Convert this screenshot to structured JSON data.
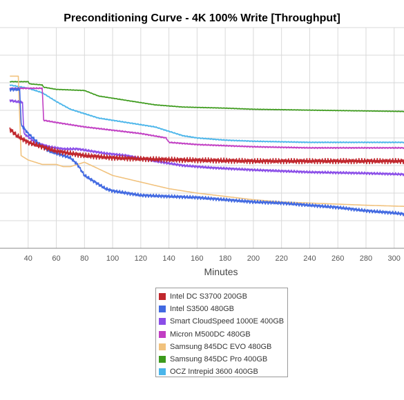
{
  "chart_data": {
    "type": "line",
    "title": "Preconditioning Curve - 4K 100% Write [Throughput]",
    "xlabel": "Minutes",
    "ylabel": "",
    "x_ticks": [
      40,
      60,
      80,
      100,
      120,
      140,
      160,
      180,
      200,
      220,
      240,
      260,
      280,
      300
    ],
    "xlim": [
      27,
      307
    ],
    "ylim": [
      0,
      100
    ],
    "grid": true,
    "legend_position": "bottom",
    "series": [
      {
        "name": "Intel DC S3700 200GB",
        "color": "#c0272d",
        "noise": 1.2,
        "points": [
          [
            27,
            54
          ],
          [
            32,
            51
          ],
          [
            40,
            48
          ],
          [
            50,
            46
          ],
          [
            60,
            44
          ],
          [
            70,
            43
          ],
          [
            80,
            42
          ],
          [
            90,
            41.5
          ],
          [
            100,
            41
          ],
          [
            120,
            40.5
          ],
          [
            150,
            40
          ],
          [
            200,
            39.5
          ],
          [
            250,
            39.5
          ],
          [
            307,
            39.5
          ]
        ]
      },
      {
        "name": "Intel S3500 480GB",
        "color": "#4169e1",
        "noise": 0.8,
        "points": [
          [
            27,
            72
          ],
          [
            34,
            72
          ],
          [
            35,
            56
          ],
          [
            40,
            52
          ],
          [
            45,
            49
          ],
          [
            50,
            46
          ],
          [
            55,
            44
          ],
          [
            60,
            43
          ],
          [
            65,
            42
          ],
          [
            70,
            41
          ],
          [
            75,
            38
          ],
          [
            80,
            33
          ],
          [
            85,
            31
          ],
          [
            90,
            29
          ],
          [
            95,
            27
          ],
          [
            100,
            26
          ],
          [
            110,
            25
          ],
          [
            120,
            24
          ],
          [
            140,
            23.5
          ],
          [
            160,
            23
          ],
          [
            180,
            22
          ],
          [
            200,
            21
          ],
          [
            220,
            20.5
          ],
          [
            240,
            19.5
          ],
          [
            260,
            18.5
          ],
          [
            280,
            17
          ],
          [
            300,
            16
          ],
          [
            307,
            15.5
          ]
        ]
      },
      {
        "name": "Smart CloudSpeed 1000E 400GB",
        "color": "#8a4de8",
        "noise": 0.6,
        "points": [
          [
            27,
            67
          ],
          [
            36,
            66
          ],
          [
            37,
            52
          ],
          [
            45,
            48
          ],
          [
            55,
            46
          ],
          [
            65,
            45
          ],
          [
            75,
            45
          ],
          [
            85,
            44
          ],
          [
            95,
            43
          ],
          [
            110,
            42
          ],
          [
            130,
            39.5
          ],
          [
            150,
            37.5
          ],
          [
            170,
            36.5
          ],
          [
            200,
            35.5
          ],
          [
            240,
            34.5
          ],
          [
            280,
            34
          ],
          [
            307,
            33.5
          ]
        ]
      },
      {
        "name": "Micron M500DC 480GB",
        "color": "#c13ec3",
        "noise": 0.3,
        "points": [
          [
            27,
            72.5
          ],
          [
            40,
            72.5
          ],
          [
            50,
            72.5
          ],
          [
            51,
            58
          ],
          [
            60,
            57
          ],
          [
            80,
            55
          ],
          [
            100,
            53.5
          ],
          [
            120,
            52
          ],
          [
            138,
            50
          ],
          [
            140,
            48
          ],
          [
            160,
            47
          ],
          [
            200,
            46
          ],
          [
            240,
            45.5
          ],
          [
            280,
            45.5
          ],
          [
            307,
            45.5
          ]
        ]
      },
      {
        "name": "Samsung 845DC EVO 480GB",
        "color": "#f1c27d",
        "noise": 0.0,
        "points": [
          [
            27,
            78
          ],
          [
            33,
            78
          ],
          [
            34,
            60
          ],
          [
            35,
            42
          ],
          [
            40,
            40
          ],
          [
            45,
            39
          ],
          [
            50,
            38
          ],
          [
            55,
            38
          ],
          [
            60,
            38
          ],
          [
            65,
            37
          ],
          [
            70,
            37
          ],
          [
            75,
            38
          ],
          [
            80,
            39
          ],
          [
            90,
            36
          ],
          [
            100,
            33
          ],
          [
            120,
            30
          ],
          [
            140,
            27
          ],
          [
            160,
            25
          ],
          [
            180,
            23.5
          ],
          [
            200,
            22
          ],
          [
            220,
            21
          ],
          [
            240,
            20.5
          ],
          [
            260,
            20
          ],
          [
            280,
            19.5
          ],
          [
            307,
            19
          ]
        ]
      },
      {
        "name": "Samsung 845DC Pro 400GB",
        "color": "#3c9a1b",
        "noise": 0.15,
        "points": [
          [
            27,
            75.5
          ],
          [
            40,
            75.5
          ],
          [
            41,
            74.5
          ],
          [
            50,
            74
          ],
          [
            51,
            73
          ],
          [
            60,
            72
          ],
          [
            80,
            71.5
          ],
          [
            90,
            69
          ],
          [
            110,
            67
          ],
          [
            130,
            65
          ],
          [
            150,
            64
          ],
          [
            180,
            63.5
          ],
          [
            200,
            63
          ],
          [
            250,
            62.5
          ],
          [
            307,
            62
          ]
        ]
      },
      {
        "name": "OCZ Intrepid 3600 400GB",
        "color": "#4ab5ea",
        "noise": 0.25,
        "points": [
          [
            27,
            74
          ],
          [
            40,
            72.5
          ],
          [
            50,
            70.5
          ],
          [
            60,
            66.5
          ],
          [
            70,
            63
          ],
          [
            80,
            61
          ],
          [
            90,
            59
          ],
          [
            100,
            58
          ],
          [
            110,
            57
          ],
          [
            120,
            56
          ],
          [
            130,
            55
          ],
          [
            140,
            53
          ],
          [
            150,
            51
          ],
          [
            160,
            50
          ],
          [
            180,
            49
          ],
          [
            200,
            48.5
          ],
          [
            240,
            48
          ],
          [
            280,
            48
          ],
          [
            307,
            48
          ]
        ]
      }
    ]
  }
}
